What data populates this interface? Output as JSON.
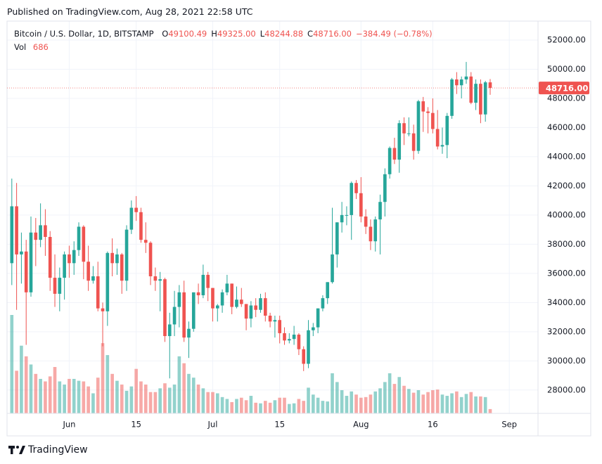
{
  "header": {
    "published": "Published on TradingView.com, Aug 28, 2021 22:58 UTC"
  },
  "footer": {
    "brand": "TradingView"
  },
  "chart_data": {
    "type": "candlestick",
    "symbol": "Bitcoin / U.S. Dollar, 1D, BITSTAMP",
    "ohlc_legend": [
      {
        "key": "O",
        "label": "49100.49"
      },
      {
        "key": "H",
        "label": "49325.00"
      },
      {
        "key": "L",
        "label": "48244.88"
      },
      {
        "key": "C",
        "label": "48716.00"
      }
    ],
    "change_label": "−384.49 (−0.78%)",
    "up_color": "#26a69a",
    "down_color": "#ef5350",
    "last_price": {
      "value": 48716,
      "label": "48716.00"
    },
    "x": [
      "05-20",
      "05-21",
      "05-22",
      "05-23",
      "05-24",
      "05-25",
      "05-26",
      "05-27",
      "05-28",
      "05-29",
      "05-30",
      "05-31",
      "06-01",
      "06-02",
      "06-03",
      "06-04",
      "06-05",
      "06-06",
      "06-07",
      "06-08",
      "06-09",
      "06-10",
      "06-11",
      "06-12",
      "06-13",
      "06-14",
      "06-15",
      "06-16",
      "06-17",
      "06-18",
      "06-19",
      "06-20",
      "06-21",
      "06-22",
      "06-23",
      "06-24",
      "06-25",
      "06-26",
      "06-27",
      "06-28",
      "06-29",
      "06-30",
      "07-01",
      "07-02",
      "07-03",
      "07-04",
      "07-05",
      "07-06",
      "07-07",
      "07-08",
      "07-09",
      "07-10",
      "07-11",
      "07-12",
      "07-13",
      "07-14",
      "07-15",
      "07-16",
      "07-17",
      "07-18",
      "07-19",
      "07-20",
      "07-21",
      "07-22",
      "07-23",
      "07-24",
      "07-25",
      "07-26",
      "07-27",
      "07-28",
      "07-29",
      "07-30",
      "07-31",
      "08-01",
      "08-02",
      "08-03",
      "08-04",
      "08-05",
      "08-06",
      "08-07",
      "08-08",
      "08-09",
      "08-10",
      "08-11",
      "08-12",
      "08-13",
      "08-14",
      "08-15",
      "08-16",
      "08-17",
      "08-18",
      "08-19",
      "08-20",
      "08-21",
      "08-22",
      "08-23",
      "08-24",
      "08-25",
      "08-26",
      "08-27",
      "08-28"
    ],
    "open": [
      36700,
      40600,
      37300,
      37500,
      34700,
      38800,
      38300,
      39300,
      38500,
      35700,
      34600,
      35700,
      37300,
      36700,
      37600,
      39200,
      36800,
      35500,
      35800,
      33600,
      33400,
      37400,
      36700,
      37300,
      35500,
      39000,
      40500,
      40200,
      38300,
      38100,
      35800,
      35500,
      35600,
      31700,
      32500,
      33700,
      34700,
      31600,
      32200,
      34700,
      34500,
      35900,
      35000,
      33600,
      33800,
      34700,
      35300,
      33700,
      34200,
      33900,
      32900,
      33800,
      33500,
      34300,
      33100,
      32700,
      32800,
      31900,
      31400,
      31500,
      31800,
      30800,
      29800,
      32100,
      32300,
      33600,
      34300,
      35400,
      37300,
      39500,
      40000,
      40000,
      42200,
      41500,
      39900,
      39200,
      38200,
      39700,
      40900,
      42800,
      44600,
      43800,
      46300,
      45600,
      45600,
      44400,
      47800,
      47100,
      47000,
      45900,
      44700,
      44800,
      46800,
      49300,
      48900,
      49300,
      49500,
      47700,
      49000,
      46900,
      49100.49
    ],
    "high": [
      42500,
      42200,
      38800,
      38300,
      39900,
      39800,
      40800,
      40400,
      38900,
      37300,
      36400,
      37500,
      37900,
      38200,
      39500,
      39300,
      37900,
      36500,
      36800,
      34000,
      37500,
      38400,
      37700,
      37400,
      39300,
      41000,
      41300,
      40500,
      39500,
      38200,
      36400,
      36100,
      35700,
      33300,
      34800,
      35200,
      35500,
      32700,
      34700,
      35300,
      36600,
      36100,
      35000,
      33900,
      34900,
      35900,
      35300,
      35100,
      35000,
      33900,
      34100,
      34300,
      34600,
      34700,
      33300,
      33100,
      33100,
      32300,
      31900,
      32400,
      31900,
      31000,
      32800,
      32600,
      33600,
      34500,
      35400,
      40500,
      39500,
      40900,
      40600,
      42300,
      42400,
      42600,
      40400,
      39700,
      39900,
      41400,
      43200,
      44700,
      45300,
      46500,
      46700,
      46700,
      46200,
      47900,
      48100,
      47400,
      48000,
      47200,
      46000,
      47000,
      49400,
      49800,
      49500,
      50500,
      49800,
      49300,
      49300,
      49200,
      49325
    ],
    "low": [
      35200,
      33500,
      35300,
      31100,
      34400,
      36500,
      37800,
      37200,
      34800,
      33700,
      33400,
      34200,
      35700,
      35900,
      37200,
      35600,
      34800,
      35300,
      33400,
      31000,
      32400,
      35800,
      35900,
      34600,
      34800,
      38700,
      39600,
      38100,
      37400,
      35200,
      34800,
      33400,
      31300,
      28800,
      31700,
      32300,
      31300,
      30200,
      32000,
      33900,
      34300,
      34100,
      32700,
      32700,
      33300,
      34500,
      33200,
      33600,
      33700,
      32100,
      32300,
      33000,
      33300,
      32700,
      32300,
      31600,
      31200,
      31100,
      31200,
      31100,
      30400,
      29300,
      29500,
      31700,
      31900,
      33400,
      33900,
      35300,
      36400,
      38800,
      39300,
      38300,
      41100,
      39500,
      38700,
      37600,
      37500,
      37300,
      39900,
      42500,
      43500,
      42900,
      44800,
      45400,
      43800,
      44200,
      45700,
      45600,
      45600,
      44500,
      44200,
      43900,
      46600,
      48300,
      48000,
      49000,
      47600,
      47200,
      46300,
      46400,
      48244.88
    ],
    "close": [
      40600,
      37300,
      37500,
      34700,
      38800,
      38300,
      39300,
      38500,
      35700,
      34600,
      35700,
      37300,
      36700,
      37600,
      39200,
      36800,
      35500,
      35800,
      33600,
      33400,
      37400,
      36700,
      37300,
      35500,
      39000,
      40500,
      40200,
      38300,
      38100,
      35800,
      35500,
      35600,
      31700,
      32500,
      33700,
      34700,
      31600,
      32200,
      34700,
      34500,
      35900,
      35000,
      33600,
      33800,
      34700,
      35300,
      33700,
      34200,
      33900,
      32900,
      33800,
      33500,
      34300,
      33100,
      32700,
      32800,
      31900,
      31400,
      31500,
      31800,
      30800,
      29800,
      32100,
      32300,
      33600,
      34300,
      35400,
      37300,
      39500,
      40000,
      40000,
      42200,
      41500,
      39900,
      39200,
      38200,
      39700,
      40900,
      42800,
      44600,
      43800,
      46300,
      45600,
      45600,
      44400,
      47800,
      47100,
      47000,
      45900,
      44700,
      44800,
      46800,
      49300,
      48900,
      49300,
      49500,
      47700,
      49000,
      46900,
      49100,
      48716
    ],
    "volume": {
      "label": "Vol",
      "values": [
        15700,
        6800,
        10800,
        9100,
        7800,
        6300,
        5500,
        5100,
        5900,
        7400,
        5100,
        4600,
        5500,
        5500,
        5200,
        5100,
        4300,
        3200,
        5700,
        11200,
        9300,
        6300,
        5200,
        4600,
        3600,
        4300,
        7100,
        5100,
        4600,
        3400,
        3400,
        4000,
        4800,
        4100,
        4600,
        9100,
        8000,
        6300,
        5700,
        4600,
        4000,
        3400,
        3400,
        3200,
        2600,
        2300,
        1800,
        2300,
        2500,
        2100,
        2800,
        1700,
        1600,
        2000,
        1700,
        2100,
        2500,
        2500,
        1500,
        1600,
        2300,
        2000,
        4100,
        3000,
        2500,
        2000,
        1900,
        6400,
        5000,
        3700,
        2800,
        3500,
        3000,
        2500,
        2600,
        3000,
        3500,
        4000,
        5000,
        6400,
        4700,
        5800,
        4400,
        3900,
        3300,
        3700,
        3000,
        3400,
        3700,
        3800,
        3000,
        2800,
        3200,
        3500,
        2600,
        3100,
        3400,
        2700,
        2700,
        2600,
        686
      ]
    },
    "xlim": [
      "05-19",
      "09-07"
    ],
    "xticks": [
      {
        "value": "06-01",
        "label": "Jun"
      },
      {
        "value": "06-15",
        "label": "15"
      },
      {
        "value": "07-01",
        "label": "Jul"
      },
      {
        "value": "07-15",
        "label": "15"
      },
      {
        "value": "08-01",
        "label": "Aug"
      },
      {
        "value": "08-16",
        "label": "16"
      },
      {
        "value": "09-01",
        "label": "Sep"
      }
    ],
    "ylim": [
      26400,
      53300
    ],
    "yticks": [
      {
        "value": 28000,
        "label": "28000.00"
      },
      {
        "value": 30000,
        "label": "30000.00"
      },
      {
        "value": 32000,
        "label": "32000.00"
      },
      {
        "value": 34000,
        "label": "34000.00"
      },
      {
        "value": 36000,
        "label": "36000.00"
      },
      {
        "value": 38000,
        "label": "38000.00"
      },
      {
        "value": 40000,
        "label": "40000.00"
      },
      {
        "value": 42000,
        "label": "42000.00"
      },
      {
        "value": 44000,
        "label": "44000.00"
      },
      {
        "value": 46000,
        "label": "46000.00"
      },
      {
        "value": 48000,
        "label": "48000.00"
      },
      {
        "value": 50000,
        "label": "50000.00"
      },
      {
        "value": 52000,
        "label": "52000.00"
      }
    ],
    "grid": true
  }
}
